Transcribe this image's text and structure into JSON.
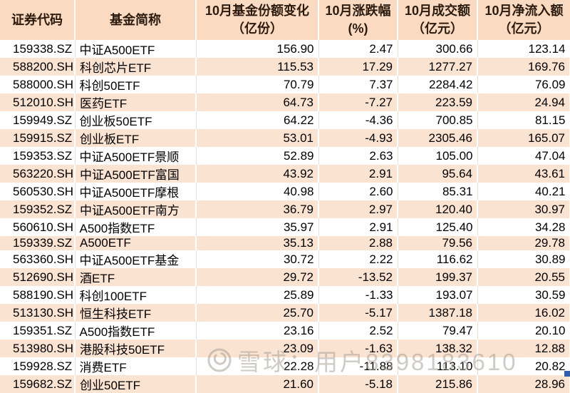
{
  "table": {
    "columns": [
      {
        "id": "code",
        "label": "证券代码",
        "sub": "",
        "align": "left"
      },
      {
        "id": "name",
        "label": "基金简称",
        "sub": "",
        "align": "left"
      },
      {
        "id": "share_change",
        "label": "10月基金份额变化",
        "sub": "（亿份）",
        "align": "right"
      },
      {
        "id": "pct_change",
        "label": "10月涨跌幅",
        "sub": "(%)",
        "align": "right"
      },
      {
        "id": "turnover",
        "label": "10月成交额",
        "sub": "（亿元）",
        "align": "right"
      },
      {
        "id": "net_inflow",
        "label": "10月净流入额",
        "sub": "（亿元）",
        "align": "right"
      }
    ],
    "rows": [
      [
        "159338.SZ",
        "中证A500ETF",
        "156.90",
        "2.47",
        "300.66",
        "123.14"
      ],
      [
        "588200.SH",
        "科创芯片ETF",
        "115.53",
        "17.29",
        "1277.27",
        "169.76"
      ],
      [
        "588000.SH",
        "科创50ETF",
        "70.79",
        "7.37",
        "2284.42",
        "76.09"
      ],
      [
        "512010.SH",
        "医药ETF",
        "64.73",
        "-7.27",
        "223.59",
        "24.94"
      ],
      [
        "159949.SZ",
        "创业板50ETF",
        "64.22",
        "-4.36",
        "700.85",
        "81.15"
      ],
      [
        "159915.SZ",
        "创业板ETF",
        "53.01",
        "-4.93",
        "2305.46",
        "165.07"
      ],
      [
        "159353.SZ",
        "中证A500ETF景顺",
        "52.89",
        "2.63",
        "105.00",
        "47.04"
      ],
      [
        "563220.SH",
        "中证A500ETF富国",
        "43.92",
        "2.91",
        "95.64",
        "43.61"
      ],
      [
        "560530.SH",
        "中证A500ETF摩根",
        "40.98",
        "2.60",
        "85.31",
        "40.21"
      ],
      [
        "159352.SZ",
        "中证A500ETF南方",
        "36.79",
        "2.97",
        "120.40",
        "30.97"
      ],
      [
        "560610.SH",
        "A500指数ETF",
        "35.97",
        "2.91",
        "125.40",
        "34.28"
      ],
      [
        "159339.SZ",
        "A500ETF",
        "35.13",
        "2.88",
        "79.56",
        "29.78"
      ],
      [
        "563360.SH",
        "中证A500ETF基金",
        "30.72",
        "2.22",
        "116.62",
        "30.89"
      ],
      [
        "512690.SH",
        "酒ETF",
        "29.72",
        "-13.52",
        "199.37",
        "20.55"
      ],
      [
        "588190.SH",
        "科创100ETF",
        "25.89",
        "-1.33",
        "193.07",
        "30.59"
      ],
      [
        "513130.SH",
        "恒生科技ETF",
        "25.70",
        "-5.17",
        "1387.18",
        "16.02"
      ],
      [
        "159351.SZ",
        "A500指数ETF",
        "23.16",
        "2.52",
        "79.47",
        "20.10"
      ],
      [
        "513980.SH",
        "港股科技50ETF",
        "23.09",
        "-1.63",
        "138.32",
        "12.88"
      ],
      [
        "159928.SZ",
        "消费ETF",
        "22.28",
        "-11.88",
        "113.10",
        "20.82"
      ],
      [
        "159682.SZ",
        "创业50ETF",
        "21.60",
        "-5.18",
        "215.86",
        "28.96"
      ]
    ]
  },
  "watermark": {
    "source_label": "雪球：用户8398183610"
  },
  "colors": {
    "header_bg": "#fadbc1",
    "stripe_bg": "#fbe3d1",
    "header_text": "#2b1a0e",
    "data_text": "#000000",
    "selection_blue": "#2e5fa8",
    "watermark_gray": "#a8a098"
  }
}
